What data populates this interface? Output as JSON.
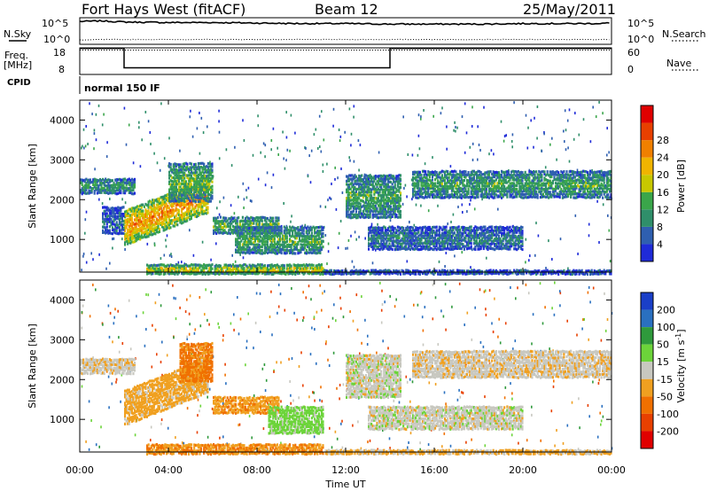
{
  "header": {
    "station": "Fort Hays West (fitACF)",
    "beam": "Beam 12",
    "date": "25/May/2011"
  },
  "strips": {
    "nsky_label": "N.Sky",
    "nsky_ticks": [
      "10^5",
      "10^0"
    ],
    "nsearch_label": "N.Search",
    "nsearch_ticks": [
      "10^5",
      "10^0"
    ],
    "freq_label": "Freq.",
    "freq_unit": "[MHz]",
    "freq_ticks": [
      "18",
      "8"
    ],
    "nave_label": "Nave",
    "nave_ticks": [
      "60",
      "0"
    ],
    "cpid_label": "CPID",
    "cpid_value": "normal 150 IF"
  },
  "axes": {
    "xlabel": "Time UT",
    "x_ticks": [
      "00:00",
      "04:00",
      "08:00",
      "12:00",
      "16:00",
      "20:00",
      "00:00"
    ],
    "ylabel": "Slant Range [km]",
    "y_ticks": [
      "1000",
      "2000",
      "3000",
      "4000"
    ]
  },
  "colorbars": {
    "power": {
      "label": "Power [dB]",
      "ticks": [
        "4",
        "8",
        "12",
        "16",
        "20",
        "24",
        "28"
      ],
      "colors": [
        "#1f2bd8",
        "#2f5fb0",
        "#2f8f6a",
        "#3aa64a",
        "#c8c800",
        "#f0b400",
        "#f08000",
        "#e84000",
        "#e00000"
      ]
    },
    "velocity": {
      "label": "Velocity [m s",
      "label_sup": "-1",
      "label_end": "]",
      "ticks": [
        "200",
        "100",
        "50",
        "15",
        "-15",
        "-50",
        "-100",
        "-200"
      ],
      "colors": [
        "#1a3fc8",
        "#2a70c0",
        "#2f9a3c",
        "#6cd43a",
        "#c8c8c0",
        "#f0a020",
        "#f07000",
        "#e84000",
        "#e00000"
      ]
    }
  },
  "chart_data": [
    {
      "type": "line",
      "panel": "noise",
      "series": [
        {
          "name": "N.Sky",
          "values_log10": [
            4.3,
            4.4,
            4.2,
            4.1,
            4.1,
            4.0,
            3.9,
            3.9,
            3.8,
            3.8,
            3.8,
            3.9,
            3.9,
            3.9,
            4.0
          ]
        },
        {
          "name": "N.Search",
          "values_log10": [
            0.8,
            0.9,
            0.9,
            0.9,
            0.9,
            0.9,
            0.9,
            0.9,
            0.9,
            0.9,
            0.9,
            0.9,
            0.9,
            0.9,
            0.9
          ]
        }
      ],
      "x_hours": [
        0,
        1,
        2,
        4,
        6,
        8,
        10,
        12,
        14,
        16,
        18,
        20,
        22,
        23,
        24
      ]
    },
    {
      "type": "line",
      "panel": "frequency",
      "series": [
        {
          "name": "Freq.",
          "unit": "MHz",
          "points": [
            [
              0,
              17.8
            ],
            [
              2,
              17.8
            ],
            [
              2,
              10.5
            ],
            [
              14,
              10.5
            ],
            [
              14,
              17.8
            ],
            [
              24,
              17.8
            ]
          ]
        },
        {
          "name": "Nave",
          "points": [
            [
              0,
              55
            ],
            [
              24,
              55
            ]
          ]
        }
      ],
      "ylim_freq": [
        8,
        18
      ],
      "ylim_nave": [
        0,
        60
      ]
    },
    {
      "type": "heatmap",
      "panel": "power",
      "xlim_hours": [
        0,
        24
      ],
      "ylim_km": [
        180,
        4500
      ],
      "zlim_db": [
        0,
        32
      ],
      "blobs": [
        {
          "t0": 2.0,
          "t1": 5.8,
          "r0": 900,
          "r1": 1800,
          "p": 24,
          "slope": 220
        },
        {
          "t0": 4.0,
          "t1": 6.0,
          "r0": 2000,
          "r1": 3000,
          "p": 14,
          "slope": 0
        },
        {
          "t0": 0.0,
          "t1": 2.5,
          "r0": 2200,
          "r1": 2600,
          "p": 12,
          "slope": 0
        },
        {
          "t0": 1.0,
          "t1": 2.0,
          "r0": 1200,
          "r1": 1900,
          "p": 6,
          "slope": 0
        },
        {
          "t0": 6.0,
          "t1": 9.0,
          "r0": 1200,
          "r1": 1650,
          "p": 14,
          "slope": 0
        },
        {
          "t0": 7.0,
          "t1": 11.0,
          "r0": 700,
          "r1": 1400,
          "p": 13,
          "slope": 0
        },
        {
          "t0": 3.0,
          "t1": 11.0,
          "r0": 180,
          "r1": 450,
          "p": 20,
          "slope": 0
        },
        {
          "t0": 11.0,
          "t1": 24.0,
          "r0": 180,
          "r1": 300,
          "p": 8,
          "slope": 0
        },
        {
          "t0": 12.0,
          "t1": 14.5,
          "r0": 1600,
          "r1": 2700,
          "p": 12,
          "slope": 0
        },
        {
          "t0": 13.0,
          "t1": 20.0,
          "r0": 800,
          "r1": 1400,
          "p": 8,
          "slope": 0
        },
        {
          "t0": 15.0,
          "t1": 24.0,
          "r0": 2100,
          "r1": 2800,
          "p": 12,
          "slope": 0
        }
      ]
    },
    {
      "type": "heatmap",
      "panel": "velocity",
      "xlim_hours": [
        0,
        24
      ],
      "ylim_km": [
        180,
        4500
      ],
      "zlim_ms": [
        -250,
        250
      ],
      "blobs": [
        {
          "t0": 2.0,
          "t1": 5.8,
          "r0": 900,
          "r1": 1800,
          "v": -30,
          "slope": 220
        },
        {
          "t0": 4.5,
          "t1": 6.0,
          "r0": 2000,
          "r1": 3000,
          "v": -60,
          "slope": 0
        },
        {
          "t0": 0.0,
          "t1": 2.5,
          "r0": 2200,
          "r1": 2600,
          "v": -5,
          "slope": 0
        },
        {
          "t0": 6.0,
          "t1": 9.0,
          "r0": 1200,
          "r1": 1650,
          "v": -40,
          "slope": 0
        },
        {
          "t0": 8.5,
          "t1": 11.0,
          "r0": 700,
          "r1": 1400,
          "v": 30,
          "slope": 0
        },
        {
          "t0": 3.0,
          "t1": 11.0,
          "r0": 180,
          "r1": 450,
          "v": -45,
          "slope": 0
        },
        {
          "t0": 11.0,
          "t1": 24.0,
          "r0": 180,
          "r1": 300,
          "v": -20,
          "slope": 0
        },
        {
          "t0": 12.0,
          "t1": 14.5,
          "r0": 1600,
          "r1": 2700,
          "v": 0,
          "slope": 0
        },
        {
          "t0": 13.0,
          "t1": 20.0,
          "r0": 800,
          "r1": 1400,
          "v": 0,
          "slope": 0
        },
        {
          "t0": 15.0,
          "t1": 24.0,
          "r0": 2100,
          "r1": 2800,
          "v": -5,
          "slope": 0
        }
      ]
    }
  ]
}
